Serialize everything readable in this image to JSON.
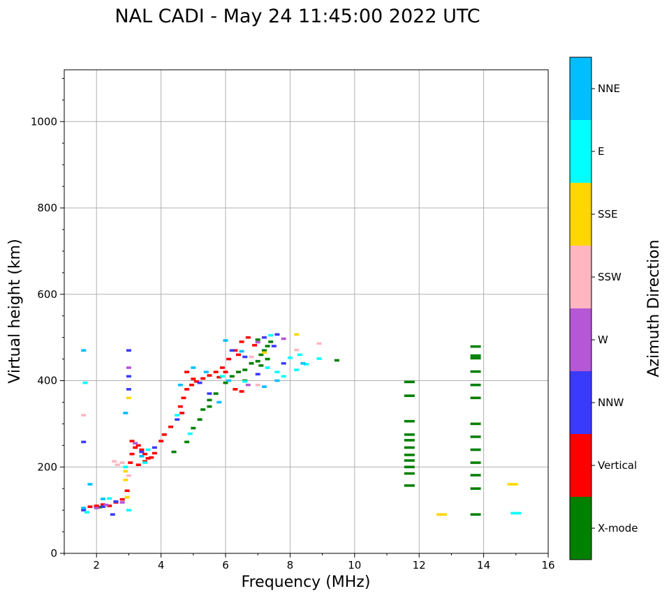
{
  "chart_data": {
    "type": "scatter",
    "title": "NAL CADI - May 24 11:45:00 2022 UTC",
    "xlabel": "Frequency (MHz)",
    "ylabel": "Virtual height (km)",
    "xlim": [
      1,
      16
    ],
    "ylim": [
      0,
      1120
    ],
    "xticks": [
      2,
      4,
      6,
      8,
      10,
      12,
      14,
      16
    ],
    "yticks": [
      0,
      200,
      400,
      600,
      800,
      1000
    ],
    "grid": true,
    "colorbar": {
      "label": "Azimuth Direction",
      "categories": [
        {
          "name": "X-mode",
          "color": "#008000"
        },
        {
          "name": "Vertical",
          "color": "#ff0000"
        },
        {
          "name": "NNW",
          "color": "#3a3aff"
        },
        {
          "name": "W",
          "color": "#b657d6"
        },
        {
          "name": "SSW",
          "color": "#ffb6c1"
        },
        {
          "name": "SSE",
          "color": "#ffd700"
        },
        {
          "name": "E",
          "color": "#00ffff"
        },
        {
          "name": "NNE",
          "color": "#00bfff"
        }
      ]
    },
    "series": [
      {
        "name": "X-mode",
        "points": [
          [
            5.0,
            290
          ],
          [
            5.2,
            310
          ],
          [
            5.3,
            333
          ],
          [
            5.5,
            340
          ],
          [
            5.5,
            355
          ],
          [
            5.7,
            370
          ],
          [
            6.0,
            395
          ],
          [
            6.2,
            410
          ],
          [
            6.4,
            420
          ],
          [
            6.6,
            425
          ],
          [
            6.8,
            440
          ],
          [
            7.0,
            445
          ],
          [
            7.1,
            460
          ],
          [
            7.2,
            470
          ],
          [
            7.3,
            480
          ],
          [
            7.4,
            490
          ],
          [
            6.6,
            400
          ],
          [
            7.1,
            435
          ],
          [
            7.3,
            450
          ],
          [
            7.0,
            495
          ],
          [
            4.4,
            235
          ],
          [
            4.8,
            258
          ],
          [
            9.45,
            447
          ],
          [
            11.7,
            397
          ],
          [
            11.7,
            365
          ],
          [
            11.7,
            306
          ],
          [
            11.7,
            275
          ],
          [
            11.7,
            262
          ],
          [
            11.7,
            245
          ],
          [
            11.7,
            228
          ],
          [
            11.7,
            215
          ],
          [
            11.7,
            200
          ],
          [
            11.7,
            185
          ],
          [
            11.7,
            157
          ],
          [
            13.75,
            479
          ],
          [
            13.75,
            458
          ],
          [
            13.75,
            452
          ],
          [
            13.75,
            421
          ],
          [
            13.75,
            390
          ],
          [
            13.75,
            360
          ],
          [
            13.75,
            300
          ],
          [
            13.75,
            270
          ],
          [
            13.75,
            240
          ],
          [
            13.75,
            210
          ],
          [
            13.75,
            181
          ],
          [
            13.75,
            150
          ],
          [
            13.75,
            90
          ],
          [
            2.1,
            107
          ],
          [
            2.2,
            110
          ],
          [
            2.0,
            106
          ]
        ]
      },
      {
        "name": "Vertical",
        "points": [
          [
            1.8,
            108
          ],
          [
            2.0,
            110
          ],
          [
            2.2,
            113
          ],
          [
            2.4,
            110
          ],
          [
            2.6,
            118
          ],
          [
            2.8,
            125
          ],
          [
            2.95,
            145
          ],
          [
            3.05,
            210
          ],
          [
            3.1,
            230
          ],
          [
            3.2,
            245
          ],
          [
            3.1,
            260
          ],
          [
            3.3,
            250
          ],
          [
            3.4,
            240
          ],
          [
            3.5,
            230
          ],
          [
            3.6,
            220
          ],
          [
            3.3,
            205
          ],
          [
            3.5,
            213
          ],
          [
            3.7,
            222
          ],
          [
            3.8,
            232
          ],
          [
            4.0,
            260
          ],
          [
            4.1,
            275
          ],
          [
            4.3,
            293
          ],
          [
            4.6,
            340
          ],
          [
            4.65,
            325
          ],
          [
            4.7,
            360
          ],
          [
            4.8,
            380
          ],
          [
            4.95,
            390
          ],
          [
            5.1,
            398
          ],
          [
            5.3,
            405
          ],
          [
            5.5,
            412
          ],
          [
            5.7,
            420
          ],
          [
            5.9,
            430
          ],
          [
            6.1,
            450
          ],
          [
            6.3,
            470
          ],
          [
            6.5,
            490
          ],
          [
            6.7,
            500
          ],
          [
            6.3,
            380
          ],
          [
            6.5,
            375
          ],
          [
            5.8,
            408
          ],
          [
            6.0,
            420
          ],
          [
            6.4,
            460
          ],
          [
            6.9,
            482
          ],
          [
            4.8,
            420
          ],
          [
            5.0,
            404
          ]
        ]
      },
      {
        "name": "NNW",
        "points": [
          [
            1.6,
            100
          ],
          [
            2.2,
            108
          ],
          [
            2.6,
            120
          ],
          [
            3.0,
            470
          ],
          [
            3.0,
            410
          ],
          [
            3.0,
            380
          ],
          [
            3.4,
            235
          ],
          [
            3.8,
            245
          ],
          [
            4.5,
            310
          ],
          [
            5.2,
            395
          ],
          [
            5.5,
            370
          ],
          [
            6.2,
            470
          ],
          [
            6.6,
            455
          ],
          [
            7.0,
            415
          ],
          [
            7.5,
            480
          ],
          [
            7.8,
            440
          ],
          [
            7.6,
            507
          ],
          [
            7.2,
            500
          ],
          [
            1.6,
            258
          ],
          [
            2.5,
            90
          ]
        ]
      },
      {
        "name": "W",
        "points": [
          [
            2.0,
            105
          ],
          [
            2.3,
            112
          ],
          [
            2.8,
            118
          ],
          [
            3.0,
            430
          ],
          [
            6.7,
            390
          ],
          [
            7.8,
            497
          ],
          [
            7.0,
            489
          ],
          [
            3.2,
            255
          ]
        ]
      },
      {
        "name": "SSW",
        "points": [
          [
            2.55,
            213
          ],
          [
            2.65,
            205
          ],
          [
            2.8,
            210
          ],
          [
            1.6,
            320
          ],
          [
            6.8,
            455
          ],
          [
            7.0,
            390
          ],
          [
            8.2,
            471
          ],
          [
            8.9,
            486
          ],
          [
            3.0,
            180
          ]
        ]
      },
      {
        "name": "SSE",
        "points": [
          [
            2.9,
            170
          ],
          [
            2.9,
            190
          ],
          [
            2.95,
            130
          ],
          [
            3.0,
            360
          ],
          [
            7.2,
            465
          ],
          [
            8.2,
            507
          ],
          [
            12.7,
            90
          ],
          [
            14.9,
            160
          ]
        ]
      },
      {
        "name": "E",
        "points": [
          [
            1.7,
            95
          ],
          [
            2.4,
            127
          ],
          [
            3.0,
            100
          ],
          [
            2.9,
            200
          ],
          [
            3.6,
            240
          ],
          [
            4.5,
            320
          ],
          [
            4.9,
            277
          ],
          [
            5.9,
            410
          ],
          [
            6.6,
            398
          ],
          [
            7.3,
            430
          ],
          [
            7.6,
            420
          ],
          [
            7.8,
            410
          ],
          [
            8.0,
            453
          ],
          [
            8.2,
            425
          ],
          [
            8.3,
            460
          ],
          [
            8.5,
            438
          ],
          [
            8.9,
            451
          ],
          [
            7.4,
            505
          ],
          [
            15.0,
            93
          ],
          [
            3.5,
            210
          ],
          [
            1.65,
            395
          ]
        ]
      },
      {
        "name": "NNE",
        "points": [
          [
            1.6,
            470
          ],
          [
            1.8,
            160
          ],
          [
            2.9,
            325
          ],
          [
            3.4,
            225
          ],
          [
            4.6,
            390
          ],
          [
            5.0,
            430
          ],
          [
            5.4,
            420
          ],
          [
            5.8,
            350
          ],
          [
            6.0,
            493
          ],
          [
            6.5,
            468
          ],
          [
            6.1,
            400
          ],
          [
            7.2,
            386
          ],
          [
            7.6,
            400
          ],
          [
            8.4,
            440
          ],
          [
            1.6,
            105
          ],
          [
            2.2,
            126
          ]
        ]
      }
    ]
  }
}
